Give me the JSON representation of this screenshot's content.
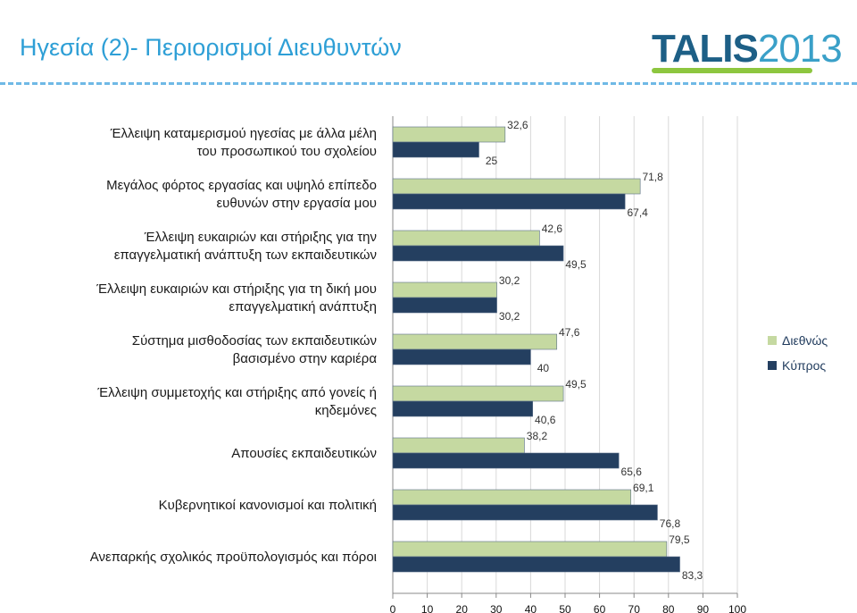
{
  "header": {
    "title": "Ηγεσία (2)- Περιορισμοί Διευθυντών",
    "logo": {
      "part1": "TALIS",
      "part2": "2013"
    }
  },
  "colors": {
    "title": "#2e9fd6",
    "series_international": "#c5d9a1",
    "series_cyprus": "#243f60",
    "bar_border": "#5b6f8a"
  },
  "chart_data": {
    "type": "bar",
    "orientation": "horizontal",
    "categories": [
      [
        "Έλλειψη καταμερισμού ηγεσίας με άλλα μέλη",
        "του προσωπικού του σχολείου"
      ],
      [
        "Μεγάλος φόρτος εργασίας και υψηλό επίπεδο",
        "ευθυνών στην εργασία μου"
      ],
      [
        "Έλλειψη ευκαιριών και στήριξης για την",
        "επαγγελματική ανάπτυξη των εκπαιδευτικών"
      ],
      [
        "Έλλειψη ευκαιριών και στήριξης για τη δική μου",
        "επαγγελματική ανάπτυξη"
      ],
      [
        "Σύστημα μισθοδοσίας των εκπαιδευτικών",
        "βασισμένο στην καριέρα"
      ],
      [
        "Έλλειψη συμμετοχής και στήριξης από γονείς ή",
        "κηδεμόνες"
      ],
      [
        "Απουσίες εκπαιδευτικών"
      ],
      [
        "Κυβερνητικοί κανονισμοί και πολιτική"
      ],
      [
        "Ανεπαρκής σχολικός προϋπολογισμός και πόροι"
      ]
    ],
    "series": [
      {
        "name": "Διεθνώς",
        "values": [
          32.6,
          71.8,
          42.6,
          30.2,
          47.6,
          49.5,
          38.2,
          69.1,
          79.5
        ],
        "labels": [
          "32,6",
          "71,8",
          "42,6",
          "30,2",
          "47,6",
          "49,5",
          "38,2",
          "69,1",
          "79,5"
        ]
      },
      {
        "name": "Κύπρος",
        "values": [
          25,
          67.4,
          49.5,
          30.2,
          40,
          40.6,
          65.6,
          76.8,
          83.3
        ],
        "labels": [
          "25",
          "67,4",
          "49,5",
          "30,2",
          "40",
          "40,6",
          "65,6",
          "76,8",
          "83,3"
        ]
      }
    ],
    "xlim": [
      0,
      100
    ],
    "xticks": [
      0,
      10,
      20,
      30,
      40,
      50,
      60,
      70,
      80,
      90,
      100
    ],
    "legend_position": "right",
    "grid": true
  }
}
